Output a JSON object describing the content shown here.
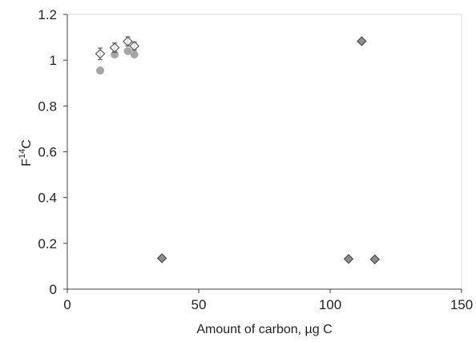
{
  "chart_data": {
    "type": "scatter",
    "title": "",
    "xlabel": "Amount of carbon, µg C",
    "ylabel_main": "F",
    "ylabel_sup": "14",
    "ylabel_tail": "C",
    "xlim": [
      0,
      150
    ],
    "ylim": [
      0,
      1.2
    ],
    "x_ticks": [
      0,
      50,
      100,
      150
    ],
    "x_tick_labels": [
      "0",
      "50",
      "100",
      "150"
    ],
    "y_ticks": [
      0,
      0.2,
      0.4,
      0.6,
      0.8,
      1.0,
      1.2
    ],
    "y_tick_labels": [
      "0",
      "0.2",
      "0.4",
      "0.6",
      "0.8",
      "1",
      "1.2"
    ],
    "grid": false,
    "series": [
      {
        "marker": "circle",
        "color": "#a6a6a6",
        "x": [
          12.5,
          18,
          23,
          25.5
        ],
        "y": [
          0.955,
          1.025,
          1.04,
          1.025
        ]
      },
      {
        "marker": "diamond-open",
        "color": "#595959",
        "x": [
          12.5,
          18,
          23,
          25.5
        ],
        "y": [
          1.028,
          1.055,
          1.082,
          1.062
        ],
        "yerr": [
          0.025,
          0.02,
          0.02,
          0.018
        ]
      },
      {
        "marker": "diamond-filled",
        "color": "#8c8c8c",
        "x": [
          36,
          107,
          112,
          117
        ],
        "y": [
          0.135,
          0.132,
          1.083,
          0.13
        ]
      }
    ]
  }
}
